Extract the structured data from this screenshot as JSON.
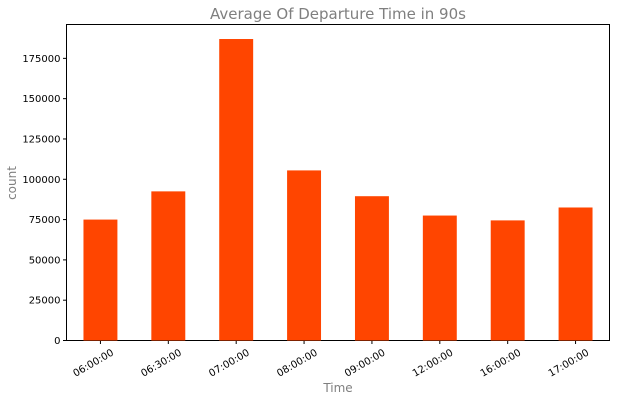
{
  "chart_data": {
    "type": "bar",
    "title": "Average Of Departure Time in 90s",
    "xlabel": "Time",
    "ylabel": "count",
    "categories": [
      "06:00:00",
      "06:30:00",
      "07:00:00",
      "08:00:00",
      "09:00:00",
      "12:00:00",
      "16:00:00",
      "17:00:00"
    ],
    "values": [
      75000,
      92500,
      187000,
      105500,
      89500,
      77500,
      74500,
      82500
    ],
    "ylim": [
      0,
      196000
    ],
    "yticks": [
      0,
      25000,
      50000,
      75000,
      100000,
      125000,
      150000,
      175000
    ],
    "bar_color": "#ff4500",
    "grid": false,
    "legend": "none"
  }
}
